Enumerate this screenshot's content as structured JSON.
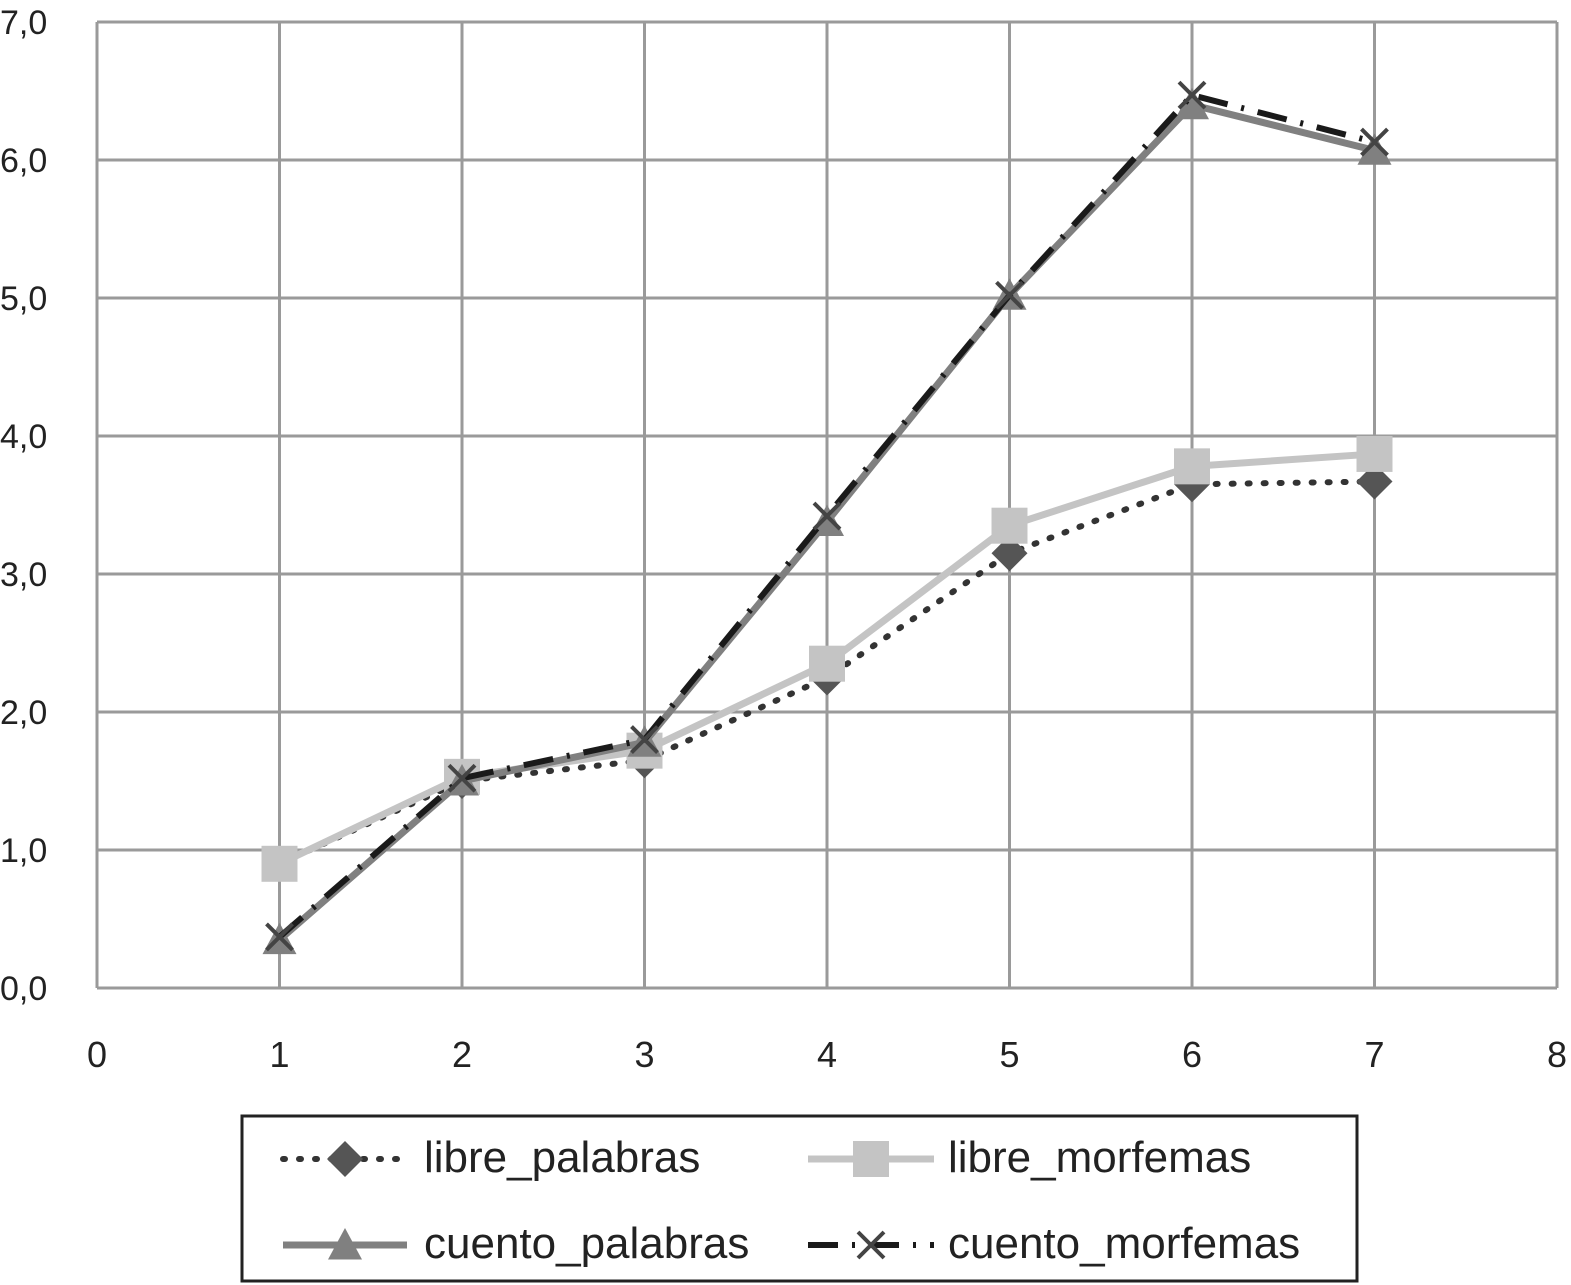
{
  "chart_data": {
    "type": "line",
    "title": "",
    "xlabel": "",
    "ylabel": "",
    "xlim": [
      0,
      8
    ],
    "ylim": [
      0,
      7
    ],
    "x_ticks": [
      0,
      1,
      2,
      3,
      4,
      5,
      6,
      7,
      8
    ],
    "x_tick_labels": [
      "0",
      "1",
      "2",
      "3",
      "4",
      "5",
      "6",
      "7",
      "8"
    ],
    "y_ticks": [
      0,
      1,
      2,
      3,
      4,
      5,
      6,
      7
    ],
    "y_tick_labels": [
      "0,0",
      "1,0",
      "2,0",
      "3,0",
      "4,0",
      "5,0",
      "6,0",
      "7,0"
    ],
    "grid": true,
    "legend_position": "bottom",
    "x": [
      1,
      2,
      3,
      4,
      5,
      6,
      7
    ],
    "series": [
      {
        "name": "libre_palabras",
        "values": [
          0.9,
          1.5,
          1.65,
          2.25,
          3.15,
          3.65,
          3.67
        ],
        "color": "#333333",
        "marker": "diamond",
        "marker_color": "#555555",
        "line_style": "dotted"
      },
      {
        "name": "libre_morfemas",
        "values": [
          0.9,
          1.53,
          1.72,
          2.35,
          3.35,
          3.78,
          3.87
        ],
        "color": "#c4c4c4",
        "marker": "square",
        "marker_color": "#c4c4c4",
        "line_style": "solid"
      },
      {
        "name": "cuento_palabras",
        "values": [
          0.35,
          1.5,
          1.78,
          3.38,
          5.02,
          6.4,
          6.07
        ],
        "color": "#808080",
        "marker": "triangle",
        "marker_color": "#808080",
        "line_style": "solid"
      },
      {
        "name": "cuento_morfemas",
        "values": [
          0.37,
          1.52,
          1.8,
          3.42,
          5.02,
          6.47,
          6.13
        ],
        "color": "#1a1a1a",
        "marker": "x",
        "marker_color": "#444444",
        "line_style": "dashdot"
      }
    ],
    "colors": {
      "grid": "#9a9a9a",
      "legend_border": "#222222",
      "background": "#ffffff"
    }
  }
}
